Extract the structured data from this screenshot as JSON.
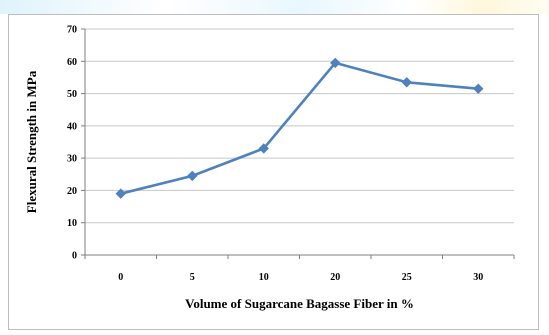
{
  "chart_data": {
    "type": "line",
    "categories": [
      "0",
      "5",
      "10",
      "20",
      "25",
      "30"
    ],
    "values": [
      19,
      24.5,
      33,
      59.5,
      53.5,
      51.5
    ],
    "xlabel": "Volume of Sugarcane Bagasse Fiber in %",
    "ylabel": "Flexural Strength in MPa",
    "ylim": [
      0,
      70
    ],
    "yticks": [
      0,
      10,
      20,
      30,
      40,
      50,
      60,
      70
    ],
    "grid": "horizontal",
    "line_color": "#4f81bd",
    "marker": "diamond"
  }
}
